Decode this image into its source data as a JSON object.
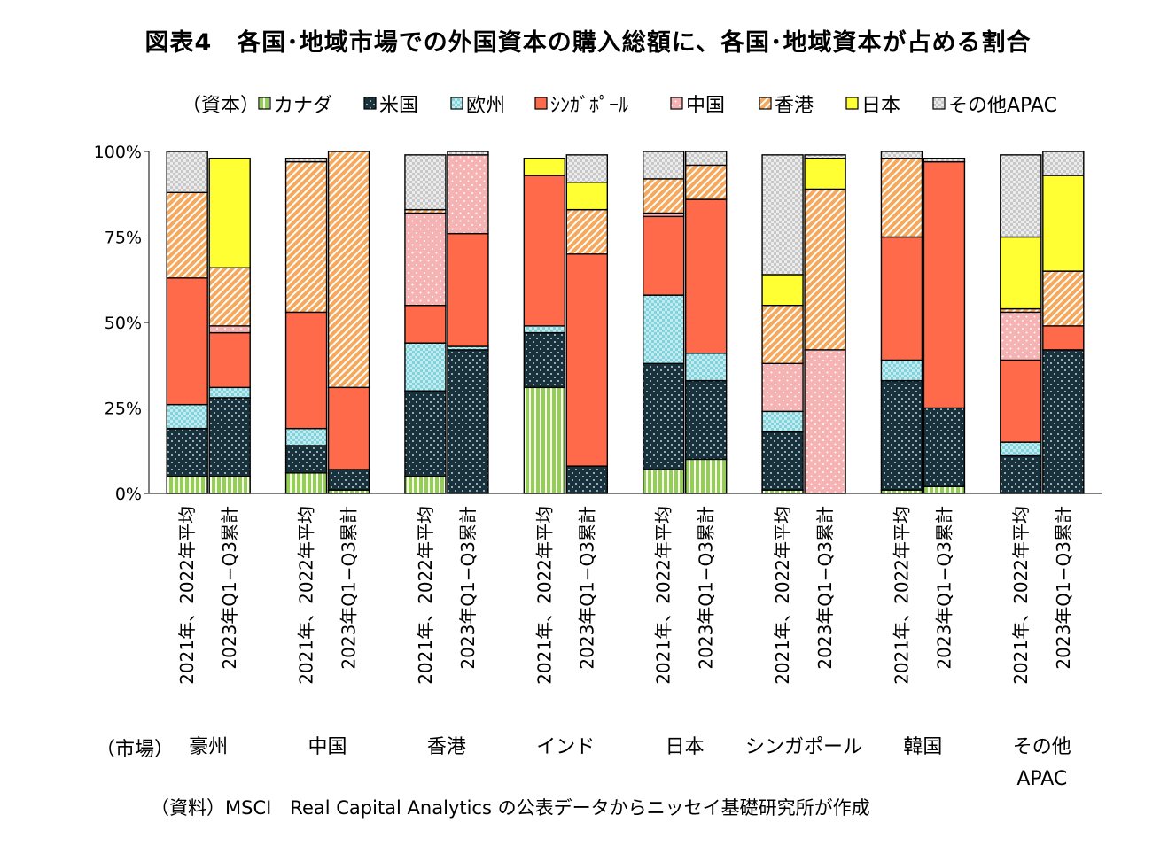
{
  "title": "図表4　各国･地域市場での外国資本の購入総額に、各国･地域資本が占める割合",
  "source": "（資料）MSCI　Real Capital Analytics の公表データからニッセイ基礎研究所が作成",
  "chart_data": {
    "type": "bar",
    "stacked": true,
    "percent": true,
    "legend_title": "（資本）",
    "legend_position": "top",
    "grid": false,
    "ylim": [
      0,
      100
    ],
    "yticks": [
      "0%",
      "25%",
      "50%",
      "75%",
      "100%"
    ],
    "market_axis_label": "（市場）",
    "period_labels": [
      "2021年、2022年平均",
      "2023年Q1−Q3累計"
    ],
    "series": [
      {
        "name": "カナダ",
        "color": "#92d050",
        "pattern": "vstripe"
      },
      {
        "name": "米国",
        "color": "#17323c",
        "pattern": "dots"
      },
      {
        "name": "欧州",
        "color": "#7fd3dc",
        "pattern": "grid"
      },
      {
        "name": "シンガポール",
        "color": "#ff6a4a",
        "pattern": "solid"
      },
      {
        "name": "中国",
        "color": "#f5b3b3",
        "pattern": "dots"
      },
      {
        "name": "香港",
        "color": "#f6a95d",
        "pattern": "diag"
      },
      {
        "name": "日本",
        "color": "#ffff33",
        "pattern": "solid"
      },
      {
        "name": "その他APAC",
        "color": "#d9d9d9",
        "pattern": "check"
      }
    ],
    "legend_labels": [
      "カナダ",
      "米国",
      "欧州",
      "ｼﾝｶﾞﾎﾟｰﾙ",
      "中国",
      "香港",
      "日本",
      "その他APAC"
    ],
    "groups": [
      {
        "market": "豪州",
        "bars": [
          [
            5,
            14,
            7,
            37,
            0,
            25,
            0,
            12
          ],
          [
            5,
            23,
            3,
            16,
            2,
            17,
            32,
            0
          ]
        ]
      },
      {
        "market": "中国",
        "bars": [
          [
            6,
            8,
            5,
            34,
            0,
            44,
            0,
            1
          ],
          [
            1,
            6,
            0,
            24,
            0,
            69,
            0,
            0
          ]
        ]
      },
      {
        "market": "香港",
        "bars": [
          [
            5,
            25,
            14,
            11,
            27,
            1,
            0,
            16
          ],
          [
            0,
            42,
            1,
            33,
            23,
            0,
            0,
            1
          ]
        ]
      },
      {
        "market": "インド",
        "bars": [
          [
            31,
            16,
            2,
            44,
            0,
            0,
            5,
            0
          ],
          [
            0,
            8,
            0,
            62,
            0,
            13,
            8,
            8
          ]
        ]
      },
      {
        "market": "日本",
        "bars": [
          [
            7,
            31,
            20,
            23,
            1,
            10,
            0,
            8
          ],
          [
            10,
            23,
            8,
            45,
            0,
            10,
            0,
            4
          ]
        ]
      },
      {
        "market": "シンガポール",
        "bars": [
          [
            1,
            17,
            6,
            0,
            14,
            17,
            9,
            35
          ],
          [
            0,
            0,
            0,
            0,
            42,
            47,
            9,
            1
          ]
        ]
      },
      {
        "market": "韓国",
        "bars": [
          [
            1,
            32,
            6,
            36,
            0,
            23,
            0,
            2
          ],
          [
            2,
            23,
            0,
            72,
            0,
            0,
            0,
            1
          ]
        ]
      },
      {
        "market": "その他\nAPAC",
        "bars": [
          [
            0,
            11,
            4,
            24,
            14,
            1,
            21,
            24
          ],
          [
            0,
            42,
            0,
            7,
            0,
            16,
            28,
            7
          ]
        ]
      }
    ]
  }
}
